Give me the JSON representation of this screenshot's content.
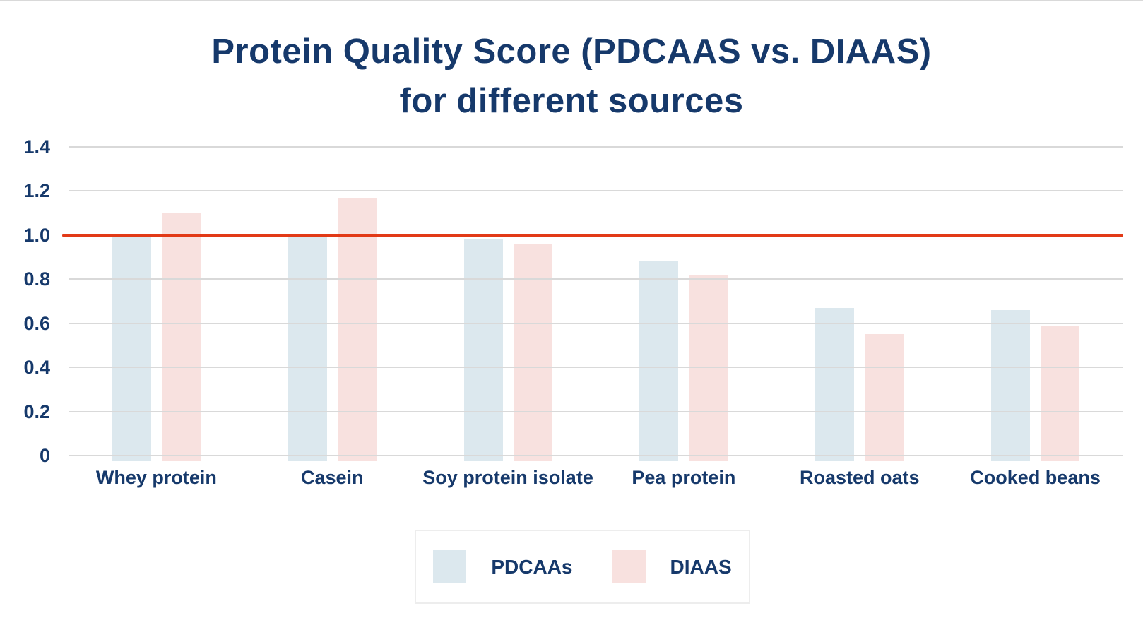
{
  "title": {
    "line1": "Protein Quality Score (PDCAAS vs. DIAAS)",
    "line2": "for different sources",
    "color": "#16396b"
  },
  "legend": {
    "entries": [
      {
        "label": "PDCAAs",
        "color": "#dce8ee"
      },
      {
        "label": "DIAAS",
        "color": "#f8e1df"
      }
    ]
  },
  "colors": {
    "text_navy": "#16396b",
    "gridline": "#d9d9d9",
    "reference_line": "#e23a17",
    "pdcaas_bar": "#dce8ee",
    "diaas_bar": "#f8e1df",
    "background": "#ffffff",
    "legend_border": "#ededed"
  },
  "chart_data": {
    "type": "bar",
    "title": "Protein Quality Score (PDCAAS vs. DIAAS) for different sources",
    "categories": [
      "Whey protein",
      "Casein",
      "Soy protein isolate",
      "Pea protein",
      "Roasted oats",
      "Cooked beans"
    ],
    "series": [
      {
        "name": "PDCAAs",
        "color": "#dce8ee",
        "values": [
          1.0,
          1.0,
          0.98,
          0.88,
          0.67,
          0.66
        ]
      },
      {
        "name": "DIAAS",
        "color": "#f8e1df",
        "values": [
          1.1,
          1.17,
          0.96,
          0.82,
          0.55,
          0.59
        ]
      }
    ],
    "xlabel": "",
    "ylabel": "",
    "ylim": [
      0,
      1.4
    ],
    "yticks": [
      0,
      0.2,
      0.4,
      0.6,
      0.8,
      1.0,
      1.2,
      1.4
    ],
    "grid": true,
    "reference_line": {
      "value": 1.0,
      "color": "#e23a17"
    },
    "legend_position": "bottom-center"
  }
}
